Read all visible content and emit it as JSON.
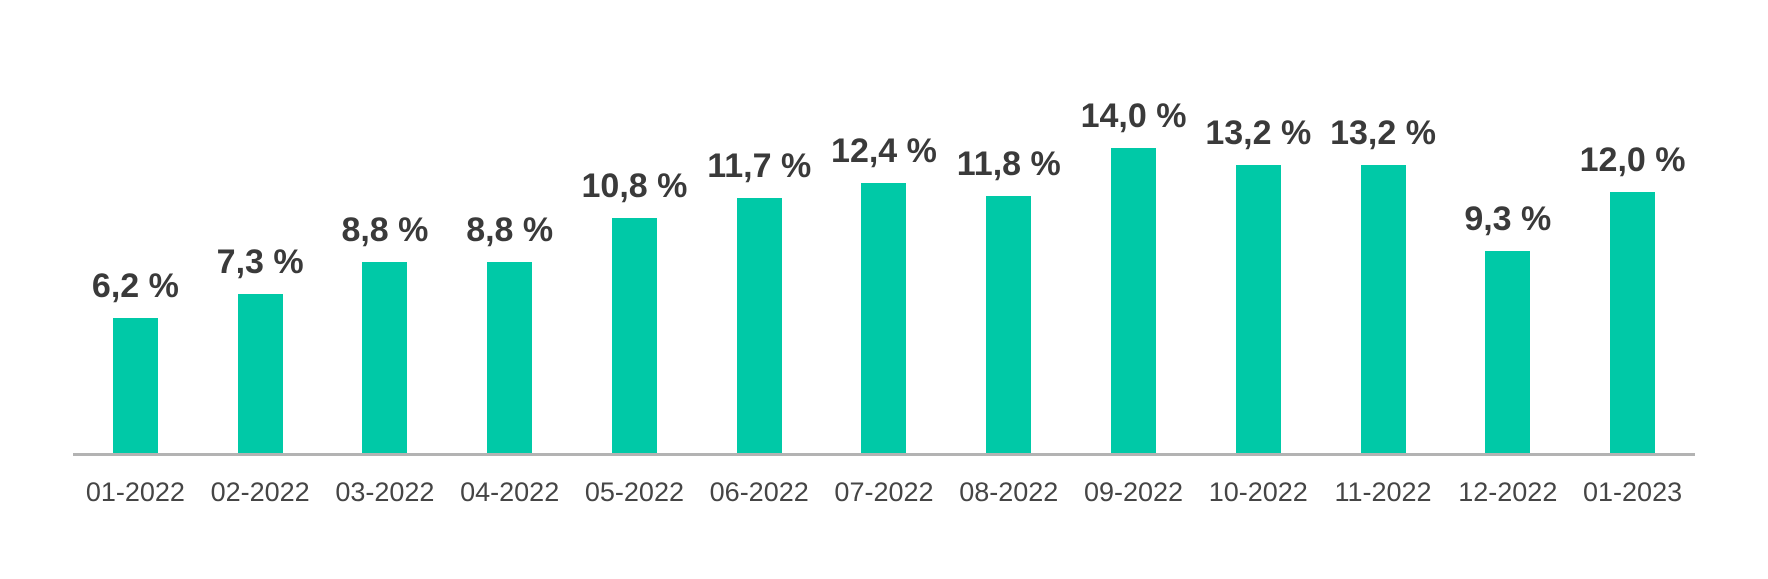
{
  "chart_data": {
    "type": "bar",
    "categories": [
      "01-2022",
      "02-2022",
      "03-2022",
      "04-2022",
      "05-2022",
      "06-2022",
      "07-2022",
      "08-2022",
      "09-2022",
      "10-2022",
      "11-2022",
      "12-2022",
      "01-2023"
    ],
    "values": [
      6.2,
      7.3,
      8.8,
      8.8,
      10.8,
      11.7,
      12.4,
      11.8,
      14.0,
      13.2,
      13.2,
      9.3,
      12.0
    ],
    "value_labels": [
      "6,2 %",
      "7,3 %",
      "8,8 %",
      "8,8 %",
      "10,8 %",
      "11,7 %",
      "12,4 %",
      "11,8 %",
      "14,0 %",
      "13,2 %",
      "13,2 %",
      "9,3 %",
      "12,0 %"
    ],
    "title": "",
    "xlabel": "",
    "ylabel": "",
    "ylim": [
      0,
      14.0
    ],
    "grid": false,
    "legend": false,
    "bar_color": "#00C9A7",
    "value_label_color": "#3a3a3a",
    "x_label_color": "#454545",
    "axis_line_color": "#b3b3b3"
  }
}
